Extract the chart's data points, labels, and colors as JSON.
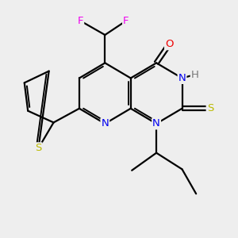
{
  "bg_color": "#eeeeee",
  "bond_color": "#000000",
  "bond_width": 1.6,
  "atom_colors": {
    "N": "#0000ee",
    "O": "#ee0000",
    "S": "#bbbb00",
    "F": "#ee00ee",
    "H": "#777777"
  },
  "font_size": 9.5,
  "fig_size": [
    3.0,
    3.0
  ],
  "dpi": 100
}
